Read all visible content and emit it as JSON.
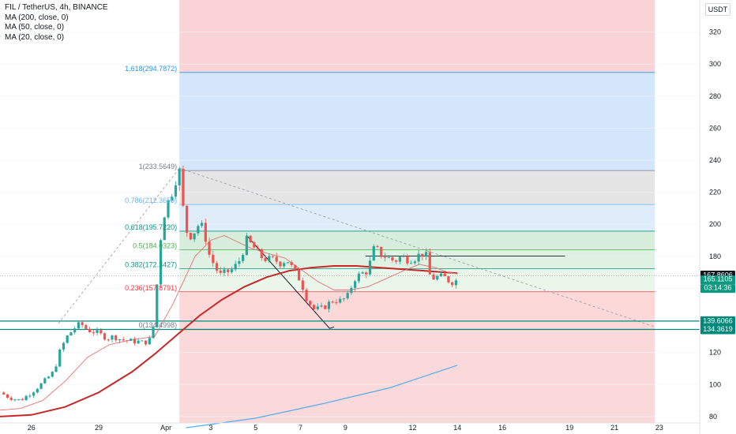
{
  "legend": {
    "title": "FIL / TetherUS, 4h, BINANCE",
    "ma200": "MA (200, close, 0)",
    "ma50": "MA (50, close, 0)",
    "ma20": "MA (20, close, 0)"
  },
  "currency": "USDT",
  "chart_data": {
    "type": "candlestick",
    "title": "FIL / TetherUS, 4h, BINANCE",
    "y_ticks": [
      80,
      100,
      120,
      140,
      160,
      180,
      200,
      220,
      240,
      260,
      280,
      300,
      320
    ],
    "ylim": [
      76,
      340
    ],
    "x_ticks": [
      "26",
      "29",
      "Apr",
      "3",
      "5",
      "7",
      "9",
      "12",
      "14",
      "16",
      "19",
      "21",
      "23"
    ],
    "x_tick_days": [
      -6,
      -3,
      0,
      2,
      4,
      6,
      8,
      11,
      13,
      15,
      18,
      20,
      22
    ],
    "xlim": [
      -7.4,
      23.8
    ],
    "fibonacci": {
      "levels": [
        {
          "label": "1.618(294.7872)",
          "value": 294.7872
        },
        {
          "label": "1(233.5649)",
          "value": 233.5649
        },
        {
          "label": "0.786(212.3659)",
          "value": 212.3659
        },
        {
          "label": "0.618(195.7220)",
          "value": 195.722
        },
        {
          "label": "0.5(184.0323)",
          "value": 184.0323
        },
        {
          "label": "0.382(172.3427)",
          "value": 172.3427
        },
        {
          "label": "0.236(157.8791)",
          "value": 157.8791
        },
        {
          "label": "0(134.4998)",
          "value": 134.4998
        }
      ]
    },
    "price_tags": [
      {
        "label": "167.8606",
        "value": 167.8606,
        "style": "dark"
      },
      {
        "label": "165.1105",
        "value": 165.1105,
        "style": "teal"
      },
      {
        "label": "03:14:36",
        "value": 165.1105,
        "style": "teal-countdown"
      },
      {
        "label": "139.6066",
        "value": 139.6066,
        "style": "teal"
      },
      {
        "label": "134.3619",
        "value": 134.3619,
        "style": "teal"
      }
    ],
    "horizontal_lines": [
      139.6066,
      134.3619,
      180.2
    ],
    "close_path": [
      [
        -7.4,
        95
      ],
      [
        -7,
        92
      ],
      [
        -6.5,
        90
      ],
      [
        -6,
        95
      ],
      [
        -5.5,
        101
      ],
      [
        -5,
        108
      ],
      [
        -4.7,
        122
      ],
      [
        -4.4,
        130
      ],
      [
        -4.1,
        135
      ],
      [
        -3.8,
        138
      ],
      [
        -3.5,
        134
      ],
      [
        -3.2,
        133
      ],
      [
        -2.9,
        131
      ],
      [
        -2.6,
        129
      ],
      [
        -2.3,
        130
      ],
      [
        -2,
        128
      ],
      [
        -1.6,
        127
      ],
      [
        -1.3,
        127
      ],
      [
        -1,
        126
      ],
      [
        -0.7,
        128
      ],
      [
        -0.5,
        140
      ],
      [
        -0.3,
        185
      ],
      [
        -0.1,
        205
      ],
      [
        0.1,
        214
      ],
      [
        0.3,
        221
      ],
      [
        0.5,
        231
      ],
      [
        0.6,
        233
      ],
      [
        0.75,
        212
      ],
      [
        0.9,
        196
      ],
      [
        1.1,
        193
      ],
      [
        1.3,
        196
      ],
      [
        1.5,
        201
      ],
      [
        1.7,
        196
      ],
      [
        1.9,
        182
      ],
      [
        2.1,
        176
      ],
      [
        2.4,
        168
      ],
      [
        2.7,
        170
      ],
      [
        3.0,
        172
      ],
      [
        3.3,
        178
      ],
      [
        3.6,
        190
      ],
      [
        3.9,
        186
      ],
      [
        4.2,
        180
      ],
      [
        4.5,
        178
      ],
      [
        4.8,
        178
      ],
      [
        5.1,
        176
      ],
      [
        5.4,
        178
      ],
      [
        5.7,
        171
      ],
      [
        6.0,
        165
      ],
      [
        6.3,
        153
      ],
      [
        6.6,
        147
      ],
      [
        6.9,
        147
      ],
      [
        7.2,
        150
      ],
      [
        7.5,
        153
      ],
      [
        7.8,
        152
      ],
      [
        8.1,
        155
      ],
      [
        8.4,
        166
      ],
      [
        8.7,
        169
      ],
      [
        9.0,
        171
      ],
      [
        9.3,
        186
      ],
      [
        9.6,
        181
      ],
      [
        9.9,
        179
      ],
      [
        10.2,
        177
      ],
      [
        10.5,
        180
      ],
      [
        10.8,
        178
      ],
      [
        11.1,
        179
      ],
      [
        11.4,
        182
      ],
      [
        11.6,
        180
      ],
      [
        11.8,
        166
      ],
      [
        12.1,
        167
      ],
      [
        12.4,
        167
      ],
      [
        12.7,
        164
      ],
      [
        13.0,
        165
      ]
    ],
    "ma20_path": [
      [
        -7.4,
        84
      ],
      [
        -6.5,
        85
      ],
      [
        -5.5,
        90
      ],
      [
        -4.5,
        102
      ],
      [
        -3.5,
        117
      ],
      [
        -2.5,
        125
      ],
      [
        -1.5,
        128
      ],
      [
        -0.5,
        130
      ],
      [
        0.3,
        150
      ],
      [
        0.8,
        165
      ],
      [
        1.3,
        180
      ],
      [
        2.0,
        190
      ],
      [
        2.6,
        193
      ],
      [
        3.2,
        189
      ],
      [
        3.8,
        185
      ],
      [
        4.5,
        182
      ],
      [
        5.3,
        179
      ],
      [
        6.0,
        172
      ],
      [
        6.8,
        164
      ],
      [
        7.5,
        159
      ],
      [
        8.2,
        159
      ],
      [
        9.0,
        161
      ],
      [
        9.8,
        166
      ],
      [
        10.6,
        171
      ],
      [
        11.3,
        175
      ],
      [
        12.0,
        173
      ],
      [
        12.6,
        170
      ],
      [
        13.0,
        169
      ]
    ],
    "ma50_path": [
      [
        -7.4,
        80
      ],
      [
        -6,
        81
      ],
      [
        -4.5,
        86
      ],
      [
        -3,
        95
      ],
      [
        -1.5,
        108
      ],
      [
        -0.5,
        119
      ],
      [
        0.5,
        131
      ],
      [
        1.5,
        143
      ],
      [
        2.5,
        153
      ],
      [
        3.5,
        161
      ],
      [
        4.5,
        167
      ],
      [
        5.5,
        171
      ],
      [
        6.5,
        173
      ],
      [
        7.5,
        174
      ],
      [
        8.5,
        174
      ],
      [
        9.5,
        173
      ],
      [
        10.5,
        172
      ],
      [
        11.5,
        171
      ],
      [
        12.5,
        170
      ],
      [
        13.0,
        169.5
      ]
    ],
    "ma200_path": [
      [
        0.9,
        73
      ],
      [
        4,
        79
      ],
      [
        7,
        88
      ],
      [
        10,
        98
      ],
      [
        13.0,
        112
      ]
    ]
  }
}
